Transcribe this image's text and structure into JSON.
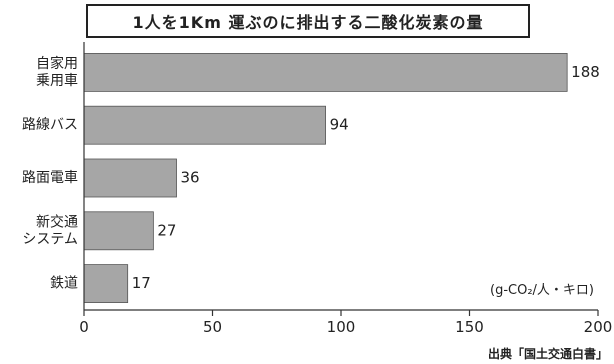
{
  "chart_data": {
    "type": "bar",
    "orientation": "horizontal",
    "title": "1人を1Km 運ぶのに排出する二酸化炭素の量",
    "categories": [
      [
        "自家用",
        "乗用車"
      ],
      [
        "路線バス"
      ],
      [
        "路面電車"
      ],
      [
        "新交通",
        "システム"
      ],
      [
        "鉄道"
      ]
    ],
    "values": [
      188,
      94,
      36,
      27,
      17
    ],
    "value_labels": [
      "188",
      "94",
      "36",
      "27",
      "17"
    ],
    "xlim": [
      0,
      200
    ],
    "xticks": [
      0,
      50,
      100,
      150,
      200
    ],
    "xtick_labels": [
      "0",
      "50",
      "100",
      "150",
      "200"
    ],
    "unit_note": "(g-CO₂/人・キロ)",
    "bar_color": "#a6a6a6",
    "bar_edge_color": "#555555",
    "axis_color": "#333333",
    "grid": false
  },
  "source": "出典「国土交通白書」"
}
